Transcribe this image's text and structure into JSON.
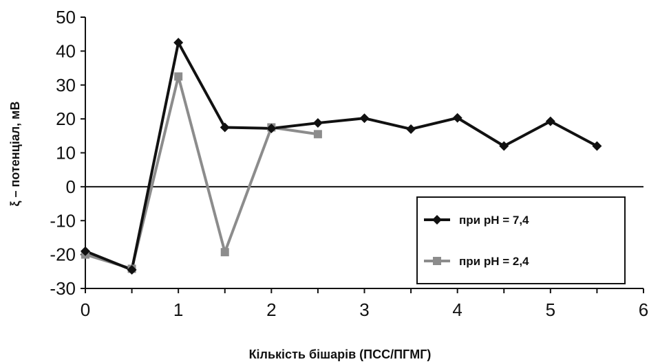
{
  "chart_data": {
    "type": "line",
    "xlabel": "Кількість бішарів (ПСС/ПГМГ)",
    "ylabel": "ξ – потенціал, мВ",
    "xlim": [
      0,
      6
    ],
    "ylim": [
      -30,
      50
    ],
    "xticks": [
      0,
      1,
      2,
      3,
      4,
      5,
      6
    ],
    "yticks": [
      50,
      40,
      30,
      20,
      10,
      0,
      -10,
      -20,
      -30
    ],
    "x_tick_labels": [
      "0",
      "1",
      "2",
      "3",
      "4",
      "5",
      "6"
    ],
    "y_tick_labels": [
      "50",
      "40",
      "30",
      "20",
      "10",
      "0",
      "-10",
      "-20",
      "-30"
    ],
    "grid": false,
    "zero_line": true,
    "legend_position": "bottom-right",
    "series": [
      {
        "name": "при pH = 7,4",
        "color": "#111111",
        "marker": "diamond",
        "x": [
          0,
          0.5,
          1,
          1.5,
          2,
          2.5,
          3,
          3.5,
          4,
          4.5,
          5,
          5.5
        ],
        "y": [
          -19,
          -24.5,
          42.5,
          17.5,
          17.2,
          18.8,
          20.2,
          17,
          20.3,
          12,
          19.3,
          12
        ]
      },
      {
        "name": "при pH = 2,4",
        "color": "#8c8c8c",
        "marker": "square",
        "x": [
          0,
          0.5,
          1,
          1.5,
          2,
          2.5
        ],
        "y": [
          -20,
          -24.2,
          32.5,
          -19.3,
          17.5,
          15.5
        ]
      }
    ]
  }
}
